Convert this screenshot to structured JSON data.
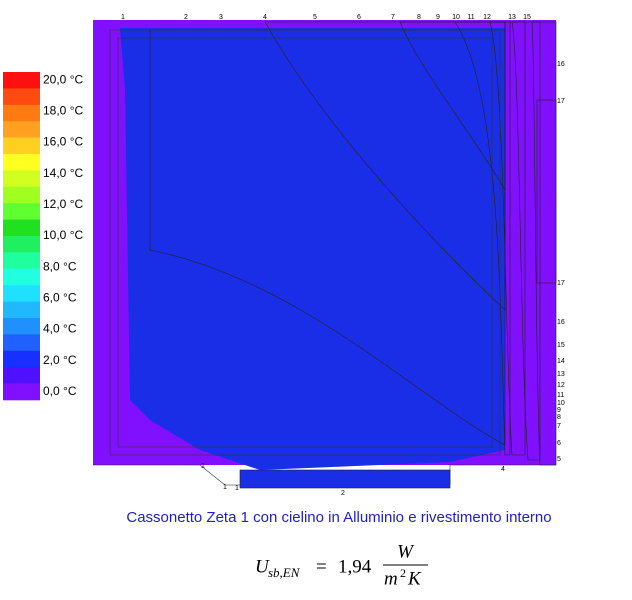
{
  "legend": {
    "labels": [
      "20,0 °C",
      "18,0 °C",
      "16,0 °C",
      "14,0 °C",
      "12,0 °C",
      "10,0 °C",
      "8,0 °C",
      "6,0 °C",
      "4,0 °C",
      "2,0 °C",
      "0,0 °C"
    ],
    "colors": [
      "#ff1010",
      "#ff4a10",
      "#ff7a10",
      "#ffa020",
      "#ffd020",
      "#ffff20",
      "#d0ff20",
      "#a0ff20",
      "#60ff30",
      "#20e020",
      "#20f060",
      "#20ffa0",
      "#20ffe0",
      "#20e0ff",
      "#20b8ff",
      "#2090ff",
      "#2060ff",
      "#1830ff",
      "#5010ff",
      "#8010ff"
    ]
  },
  "markers": {
    "top": [
      "1",
      "2",
      "3",
      "4",
      "5",
      "6",
      "7",
      "8",
      "9",
      "10",
      "11",
      "12",
      "13",
      "15"
    ],
    "right": [
      "16",
      "17",
      "17",
      "16",
      "15",
      "14",
      "13",
      "12",
      "11",
      "10",
      "9",
      "8",
      "7",
      "6",
      "5"
    ],
    "bottom": [
      "1",
      "1",
      "1",
      "2",
      "4"
    ]
  },
  "caption": "Cassonetto Zeta 1 con cielino in Alluminio e rivestimento interno",
  "formula": {
    "symbol": "U",
    "subscript": "sb,EN",
    "equals": "=",
    "value": "1,94",
    "numerator": "W",
    "denominator_base": "m",
    "denominator_exponent": "2",
    "denominator_tail": "K"
  }
}
